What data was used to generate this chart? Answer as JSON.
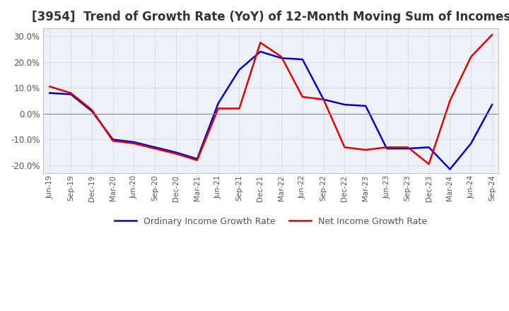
{
  "title": "[3954]  Trend of Growth Rate (YoY) of 12-Month Moving Sum of Incomes",
  "title_fontsize": 12,
  "ylim": [
    -23,
    33
  ],
  "yticks": [
    -20,
    -10,
    0,
    10,
    20,
    30
  ],
  "background_color": "#ffffff",
  "grid_color": "#aaaaaa",
  "plot_area_color": "#eef2f8",
  "ordinary_color": "#0000cc",
  "net_color": "#dd0000",
  "legend_labels": [
    "Ordinary Income Growth Rate",
    "Net Income Growth Rate"
  ],
  "x_labels": [
    "Jun-19",
    "Sep-19",
    "Dec-19",
    "Mar-20",
    "Jun-20",
    "Sep-20",
    "Dec-20",
    "Mar-21",
    "Jun-21",
    "Sep-21",
    "Dec-21",
    "Mar-22",
    "Jun-22",
    "Sep-22",
    "Dec-22",
    "Mar-23",
    "Jun-23",
    "Sep-23",
    "Dec-23",
    "Mar-24",
    "Jun-24",
    "Sep-24"
  ],
  "ordinary_income": [
    8.0,
    7.5,
    1.0,
    -10.0,
    -11.0,
    -13.0,
    -15.0,
    -17.5,
    4.0,
    17.0,
    24.0,
    21.5,
    21.0,
    5.5,
    3.5,
    3.0,
    -13.5,
    -13.5,
    -13.0,
    -21.5,
    -11.5,
    3.5
  ],
  "net_income": [
    10.5,
    8.0,
    1.5,
    -10.5,
    -11.5,
    -13.5,
    -15.5,
    -18.0,
    2.0,
    2.0,
    27.5,
    22.0,
    6.5,
    5.5,
    -13.0,
    -14.0,
    -13.0,
    -13.0,
    -19.5,
    5.0,
    22.0,
    30.5
  ]
}
